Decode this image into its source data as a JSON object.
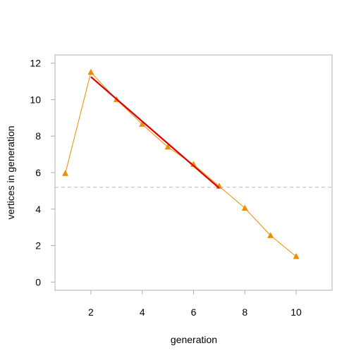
{
  "chart_data": {
    "type": "line",
    "xlabel": "generation",
    "ylabel": "vertices in generation",
    "xlim": [
      0.6,
      11.4
    ],
    "ylim": [
      -0.45,
      12.45
    ],
    "xticks": [
      2,
      4,
      6,
      8,
      10
    ],
    "yticks": [
      0,
      2,
      4,
      6,
      8,
      10,
      12
    ],
    "grid": false,
    "series": [
      {
        "kind": "line-with-triangle-markers",
        "color": "#f08c00",
        "marker_color": "#f08c00",
        "x": [
          1,
          2,
          3,
          4,
          5,
          6,
          7,
          8,
          9,
          10
        ],
        "y": [
          5.95,
          11.5,
          10.0,
          8.65,
          7.4,
          6.45,
          5.25,
          4.05,
          2.55,
          1.4
        ]
      },
      {
        "kind": "fit-line",
        "color": "#dd0000",
        "x": [
          2,
          7
        ],
        "y": [
          11.25,
          5.15
        ]
      }
    ],
    "reference_lines": [
      {
        "orientation": "horizontal",
        "y": 5.2,
        "style": "dashed",
        "color": "#bbbbbb"
      }
    ]
  }
}
